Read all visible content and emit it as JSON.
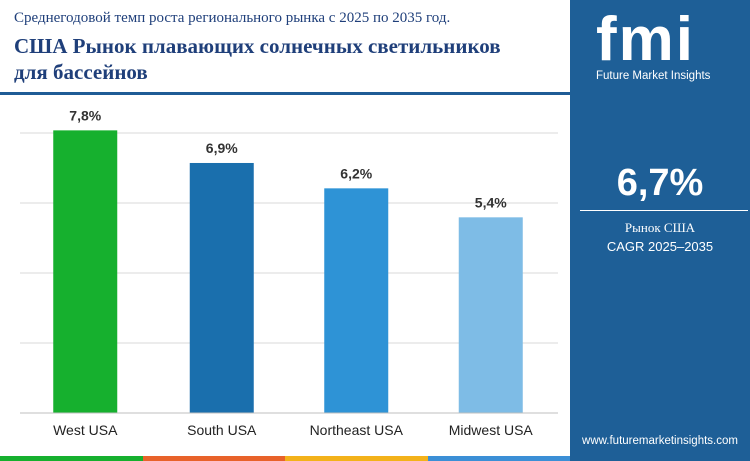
{
  "header": {
    "subtitle": "Среднегодовой темп роста регионального рынка с 2025 по 2035 год.",
    "title": "США Рынок плавающих солнечных светильников для бассейнов"
  },
  "panel": {
    "logo": "fmi",
    "logo_subtitle": "Future Market Insights",
    "kpi_value": "6,7%",
    "kpi_label_line1": "Рынок США",
    "kpi_label_line2": "CAGR 2025–2035",
    "website": "www.futuremarketinsights.com",
    "background_color": "#1e5f97"
  },
  "chart_data": {
    "type": "bar",
    "categories": [
      "West USA",
      "South USA",
      "Northeast USA",
      "Midwest USA"
    ],
    "values": [
      7.8,
      6.9,
      6.2,
      5.4
    ],
    "data_labels": [
      "7,8%",
      "6,9%",
      "6,2%",
      "5,4%"
    ],
    "colors": [
      "#16b02e",
      "#1a6fad",
      "#2e93d6",
      "#7ebce6"
    ],
    "ylim": [
      0,
      8.5
    ],
    "grid": true,
    "legend": "none"
  },
  "bottom_strip_colors": [
    "#16b02e",
    "#e8622a",
    "#f3b21a",
    "#3b8fd6"
  ]
}
